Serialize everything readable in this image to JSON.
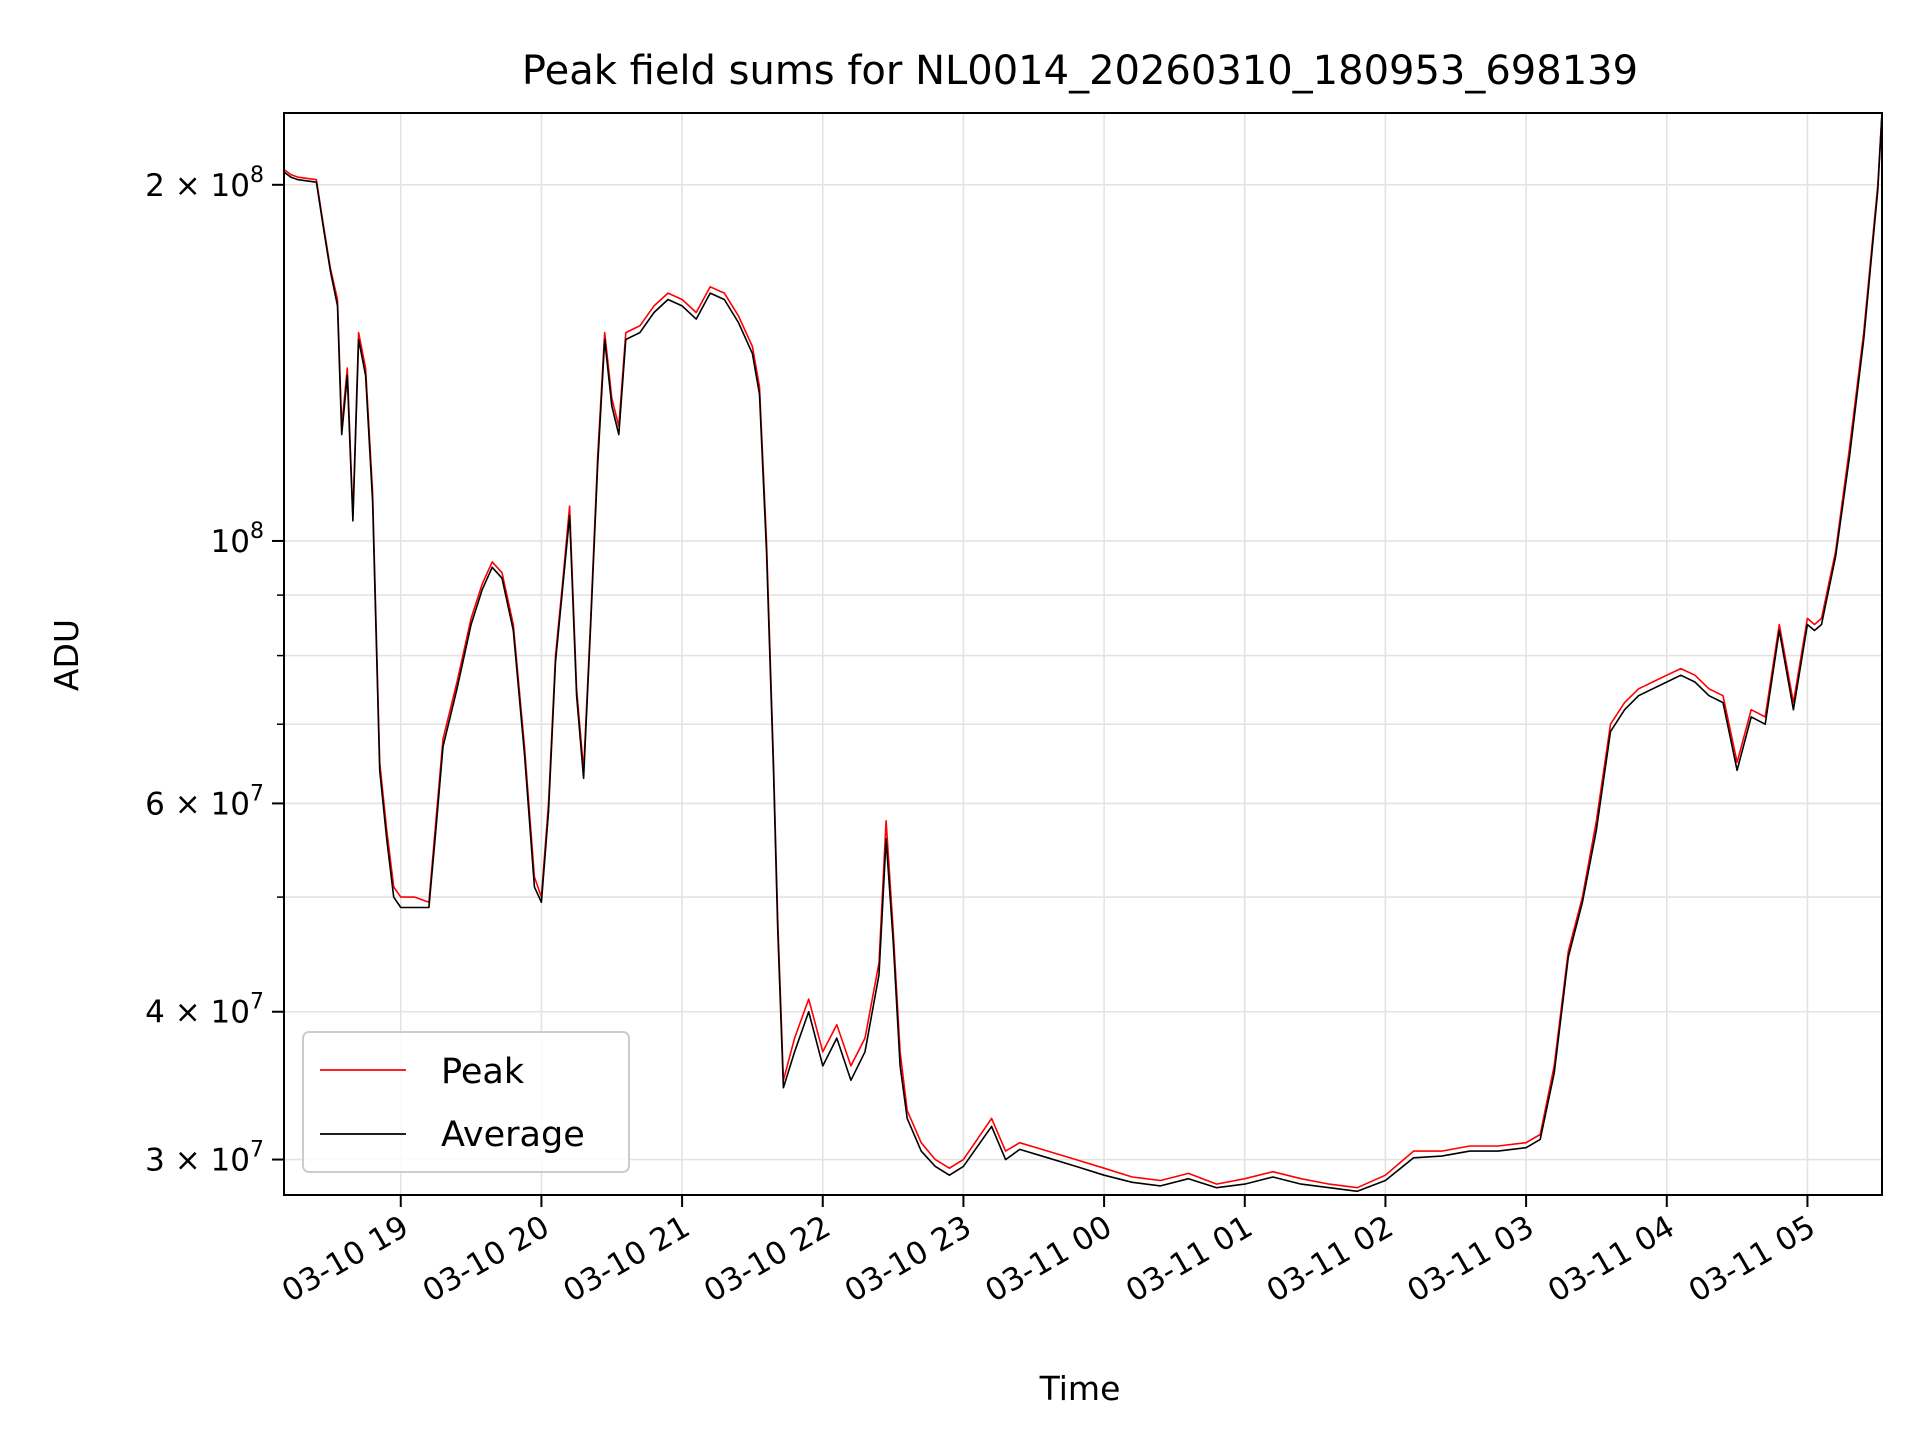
{
  "chart_data": {
    "type": "line",
    "title": "Peak field sums for NL0014_20260310_180953_698139",
    "xlabel": "Time",
    "ylabel": "ADU",
    "yscale": "log",
    "ylim": [
      28000000,
      230000000
    ],
    "xlim_hours": [
      18.17,
      29.53
    ],
    "grid": true,
    "legend_position": "lower-left",
    "x_ticks": [
      {
        "hour": 19,
        "label": "03-10 19"
      },
      {
        "hour": 20,
        "label": "03-10 20"
      },
      {
        "hour": 21,
        "label": "03-10 21"
      },
      {
        "hour": 22,
        "label": "03-10 22"
      },
      {
        "hour": 23,
        "label": "03-10 23"
      },
      {
        "hour": 24,
        "label": "03-11 00"
      },
      {
        "hour": 25,
        "label": "03-11 01"
      },
      {
        "hour": 26,
        "label": "03-11 02"
      },
      {
        "hour": 27,
        "label": "03-11 03"
      },
      {
        "hour": 28,
        "label": "03-11 04"
      },
      {
        "hour": 29,
        "label": "03-11 05"
      }
    ],
    "y_ticks_major": [
      {
        "value": 30000000,
        "mantissa": "3",
        "exp": "7"
      },
      {
        "value": 40000000,
        "mantissa": "4",
        "exp": "7"
      },
      {
        "value": 60000000,
        "mantissa": "6",
        "exp": "7"
      },
      {
        "value": 100000000,
        "mantissa": "",
        "exp": "8"
      },
      {
        "value": 200000000,
        "mantissa": "2",
        "exp": "8"
      }
    ],
    "y_grid_minor": [
      50000000,
      70000000,
      80000000,
      90000000
    ],
    "series": [
      {
        "name": "Peak",
        "color": "#ff0000",
        "x_hours": [
          18.17,
          18.22,
          18.27,
          18.4,
          18.45,
          18.5,
          18.55,
          18.58,
          18.62,
          18.66,
          18.7,
          18.75,
          18.8,
          18.85,
          18.9,
          18.95,
          19.0,
          19.1,
          19.2,
          19.25,
          19.3,
          19.4,
          19.5,
          19.58,
          19.65,
          19.72,
          19.8,
          19.88,
          19.95,
          20.0,
          20.05,
          20.1,
          20.15,
          20.2,
          20.25,
          20.3,
          20.35,
          20.4,
          20.45,
          20.5,
          20.55,
          20.6,
          20.7,
          20.8,
          20.9,
          21.0,
          21.1,
          21.2,
          21.3,
          21.4,
          21.5,
          21.55,
          21.6,
          21.65,
          21.68,
          21.72,
          21.8,
          21.9,
          22.0,
          22.1,
          22.2,
          22.3,
          22.4,
          22.45,
          22.5,
          22.55,
          22.6,
          22.7,
          22.8,
          22.9,
          23.0,
          23.2,
          23.3,
          23.4,
          23.6,
          23.8,
          24.0,
          24.2,
          24.4,
          24.6,
          24.8,
          25.0,
          25.2,
          25.4,
          25.6,
          25.8,
          26.0,
          26.2,
          26.4,
          26.6,
          26.8,
          27.0,
          27.1,
          27.2,
          27.3,
          27.4,
          27.5,
          27.6,
          27.7,
          27.8,
          27.9,
          28.0,
          28.1,
          28.2,
          28.3,
          28.4,
          28.5,
          28.6,
          28.7,
          28.8,
          28.9,
          29.0,
          29.05,
          29.1,
          29.2,
          29.3,
          29.4,
          29.5,
          29.53
        ],
        "values": [
          206000000,
          204000000,
          203000000,
          202000000,
          185000000,
          170000000,
          160000000,
          125000000,
          140000000,
          105000000,
          150000000,
          140000000,
          110000000,
          65000000,
          57000000,
          51000000,
          50000000,
          50000000,
          49500000,
          58000000,
          68000000,
          76000000,
          86000000,
          92000000,
          96000000,
          94000000,
          85000000,
          67000000,
          52000000,
          50000000,
          60000000,
          80000000,
          92000000,
          107000000,
          75000000,
          64000000,
          86000000,
          118000000,
          150000000,
          132000000,
          125000000,
          150000000,
          152000000,
          158000000,
          162000000,
          160000000,
          156000000,
          164000000,
          162000000,
          155000000,
          146000000,
          135000000,
          100000000,
          65000000,
          48000000,
          35000000,
          38000000,
          41000000,
          37000000,
          39000000,
          36000000,
          38000000,
          44000000,
          58000000,
          47000000,
          37000000,
          33000000,
          31000000,
          30000000,
          29500000,
          30000000,
          32500000,
          30500000,
          31000000,
          30500000,
          30000000,
          29500000,
          29000000,
          28800000,
          29200000,
          28600000,
          28900000,
          29300000,
          28900000,
          28600000,
          28400000,
          29100000,
          30500000,
          30500000,
          30800000,
          30800000,
          31000000,
          31500000,
          36000000,
          45000000,
          50000000,
          58000000,
          70000000,
          73000000,
          75000000,
          76000000,
          77000000,
          78000000,
          77000000,
          75000000,
          74000000,
          65000000,
          72000000,
          71000000,
          85000000,
          73000000,
          86000000,
          85000000,
          86000000,
          98000000,
          120000000,
          150000000,
          200000000,
          230000000
        ]
      },
      {
        "name": "Average",
        "color": "#000000",
        "x_hours": [
          18.17,
          18.22,
          18.27,
          18.4,
          18.45,
          18.5,
          18.55,
          18.58,
          18.62,
          18.66,
          18.7,
          18.75,
          18.8,
          18.85,
          18.9,
          18.95,
          19.0,
          19.1,
          19.2,
          19.25,
          19.3,
          19.4,
          19.5,
          19.58,
          19.65,
          19.72,
          19.8,
          19.88,
          19.95,
          20.0,
          20.05,
          20.1,
          20.15,
          20.2,
          20.25,
          20.3,
          20.35,
          20.4,
          20.45,
          20.5,
          20.55,
          20.6,
          20.7,
          20.8,
          20.9,
          21.0,
          21.1,
          21.2,
          21.3,
          21.4,
          21.5,
          21.55,
          21.6,
          21.65,
          21.68,
          21.72,
          21.8,
          21.9,
          22.0,
          22.1,
          22.2,
          22.3,
          22.4,
          22.45,
          22.5,
          22.55,
          22.6,
          22.7,
          22.8,
          22.9,
          23.0,
          23.2,
          23.3,
          23.4,
          23.6,
          23.8,
          24.0,
          24.2,
          24.4,
          24.6,
          24.8,
          25.0,
          25.2,
          25.4,
          25.6,
          25.8,
          26.0,
          26.2,
          26.4,
          26.6,
          26.8,
          27.0,
          27.1,
          27.2,
          27.3,
          27.4,
          27.5,
          27.6,
          27.7,
          27.8,
          27.9,
          28.0,
          28.1,
          28.2,
          28.3,
          28.4,
          28.5,
          28.6,
          28.7,
          28.8,
          28.9,
          29.0,
          29.05,
          29.1,
          29.2,
          29.3,
          29.4,
          29.5,
          29.53
        ],
        "values": [
          205000000,
          203000000,
          202000000,
          201000000,
          184000000,
          169000000,
          158000000,
          123000000,
          138000000,
          104000000,
          148000000,
          138000000,
          108000000,
          64000000,
          56000000,
          50000000,
          49000000,
          49000000,
          49000000,
          57000000,
          67000000,
          75000000,
          85000000,
          91000000,
          95000000,
          93000000,
          84000000,
          66000000,
          51000000,
          49500000,
          59000000,
          79000000,
          91000000,
          105000000,
          74000000,
          63000000,
          85000000,
          116000000,
          148000000,
          130000000,
          123000000,
          148000000,
          150000000,
          156000000,
          160000000,
          158000000,
          154000000,
          162000000,
          160000000,
          153000000,
          144000000,
          133000000,
          98000000,
          64000000,
          47000000,
          34500000,
          37000000,
          40000000,
          36000000,
          38000000,
          35000000,
          37000000,
          43000000,
          56000000,
          46000000,
          36000000,
          32500000,
          30500000,
          29600000,
          29100000,
          29600000,
          32000000,
          30000000,
          30600000,
          30100000,
          29600000,
          29100000,
          28700000,
          28500000,
          28900000,
          28400000,
          28600000,
          29000000,
          28600000,
          28400000,
          28200000,
          28800000,
          30100000,
          30200000,
          30500000,
          30500000,
          30700000,
          31200000,
          35500000,
          44500000,
          49500000,
          57000000,
          69000000,
          72000000,
          74000000,
          75000000,
          76000000,
          77000000,
          76000000,
          74000000,
          73000000,
          64000000,
          71000000,
          70000000,
          84000000,
          72000000,
          85000000,
          84000000,
          85000000,
          97000000,
          118000000,
          148000000,
          198000000,
          230000000
        ]
      }
    ]
  }
}
